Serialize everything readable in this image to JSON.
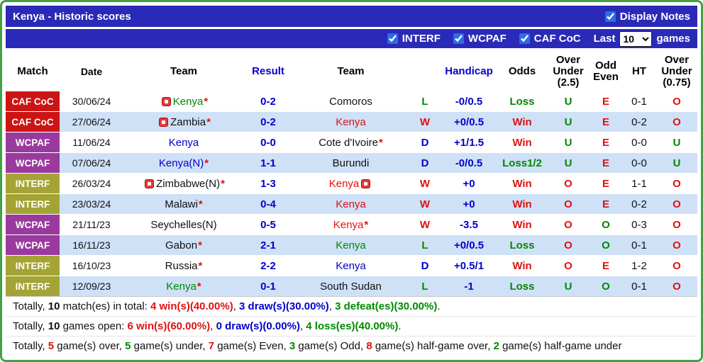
{
  "palette": {
    "header_bar_bg": "#2a2ab8",
    "outer_border_green": "#46a146",
    "row_alt_bg": "#cfe1f7",
    "red_text": "#e01111",
    "green_text": "#008800",
    "blue_text": "#0000cc",
    "cafcoc_bg": "#cc1414",
    "wcpaf_bg": "#9a3a9e",
    "interf_bg": "#a4a436",
    "checkbox_blue": "#2e6be6"
  },
  "symbols": {
    "asterisk": "*"
  },
  "title_bar": {
    "title": "Kenya - Historic scores",
    "display_notes": {
      "label": "Display Notes",
      "checked": true
    }
  },
  "filter_bar": {
    "competitions": [
      {
        "label": "INTERF",
        "checked": true
      },
      {
        "label": "WCPAF",
        "checked": true
      },
      {
        "label": "CAF CoC",
        "checked": true
      }
    ],
    "last_label": "Last",
    "games_value": "10",
    "games_label": "games"
  },
  "table": {
    "headers": [
      "Match",
      "Date",
      "Team",
      "Result",
      "Team",
      "",
      "Handicap",
      "Odds",
      "Over\nUnder\n(2.5)",
      "Odd\nEven",
      "HT",
      "Over\nUnder\n(0.75)"
    ],
    "rows": [
      {
        "type": "CAF CoC",
        "type_key": "cafcoc",
        "date": "30/06/24",
        "home": {
          "name": "Kenya",
          "color": "green",
          "asterisk": true,
          "icon_before": true
        },
        "result": "0-2",
        "away": {
          "name": "Comoros",
          "color": "black"
        },
        "outcome": {
          "text": "L",
          "color": "green"
        },
        "handicap": "-0/0.5",
        "odds": {
          "text": "Loss",
          "color": "green"
        },
        "over_under_25": {
          "text": "U",
          "color": "green"
        },
        "odd_even": {
          "text": "E",
          "color": "red"
        },
        "ht": "0-1",
        "over_under_075": {
          "text": "O",
          "color": "red"
        }
      },
      {
        "type": "CAF CoC",
        "type_key": "cafcoc",
        "date": "27/06/24",
        "home": {
          "name": "Zambia",
          "color": "black",
          "asterisk": true,
          "icon_before": true
        },
        "result": "0-2",
        "away": {
          "name": "Kenya",
          "color": "red"
        },
        "outcome": {
          "text": "W",
          "color": "red"
        },
        "handicap": "+0/0.5",
        "odds": {
          "text": "Win",
          "color": "red"
        },
        "over_under_25": {
          "text": "U",
          "color": "green"
        },
        "odd_even": {
          "text": "E",
          "color": "red"
        },
        "ht": "0-2",
        "over_under_075": {
          "text": "O",
          "color": "red"
        }
      },
      {
        "type": "WCPAF",
        "type_key": "wcpaf",
        "date": "11/06/24",
        "home": {
          "name": "Kenya",
          "color": "blue"
        },
        "result": "0-0",
        "away": {
          "name": "Cote d'Ivoire",
          "color": "black",
          "asterisk": true
        },
        "outcome": {
          "text": "D",
          "color": "blue"
        },
        "handicap": "+1/1.5",
        "odds": {
          "text": "Win",
          "color": "red"
        },
        "over_under_25": {
          "text": "U",
          "color": "green"
        },
        "odd_even": {
          "text": "E",
          "color": "red"
        },
        "ht": "0-0",
        "over_under_075": {
          "text": "U",
          "color": "green"
        }
      },
      {
        "type": "WCPAF",
        "type_key": "wcpaf",
        "date": "07/06/24",
        "home": {
          "name": "Kenya(N)",
          "color": "blue",
          "asterisk": true
        },
        "result": "1-1",
        "away": {
          "name": "Burundi",
          "color": "black"
        },
        "outcome": {
          "text": "D",
          "color": "blue"
        },
        "handicap": "-0/0.5",
        "odds": {
          "text": "Loss1/2",
          "color": "green"
        },
        "over_under_25": {
          "text": "U",
          "color": "green"
        },
        "odd_even": {
          "text": "E",
          "color": "red"
        },
        "ht": "0-0",
        "over_under_075": {
          "text": "U",
          "color": "green"
        }
      },
      {
        "type": "INTERF",
        "type_key": "interf",
        "date": "26/03/24",
        "home": {
          "name": "Zimbabwe(N)",
          "color": "black",
          "asterisk": true,
          "icon_before": true
        },
        "result": "1-3",
        "away": {
          "name": "Kenya",
          "color": "red",
          "icon_after": true
        },
        "outcome": {
          "text": "W",
          "color": "red"
        },
        "handicap": "+0",
        "odds": {
          "text": "Win",
          "color": "red"
        },
        "over_under_25": {
          "text": "O",
          "color": "red"
        },
        "odd_even": {
          "text": "E",
          "color": "red"
        },
        "ht": "1-1",
        "over_under_075": {
          "text": "O",
          "color": "red"
        }
      },
      {
        "type": "INTERF",
        "type_key": "interf",
        "date": "23/03/24",
        "home": {
          "name": "Malawi",
          "color": "black",
          "asterisk": true
        },
        "result": "0-4",
        "away": {
          "name": "Kenya",
          "color": "red"
        },
        "outcome": {
          "text": "W",
          "color": "red"
        },
        "handicap": "+0",
        "odds": {
          "text": "Win",
          "color": "red"
        },
        "over_under_25": {
          "text": "O",
          "color": "red"
        },
        "odd_even": {
          "text": "E",
          "color": "red"
        },
        "ht": "0-2",
        "over_under_075": {
          "text": "O",
          "color": "red"
        }
      },
      {
        "type": "WCPAF",
        "type_key": "wcpaf",
        "date": "21/11/23",
        "home": {
          "name": "Seychelles(N)",
          "color": "black"
        },
        "result": "0-5",
        "away": {
          "name": "Kenya",
          "color": "red",
          "asterisk": true
        },
        "outcome": {
          "text": "W",
          "color": "red"
        },
        "handicap": "-3.5",
        "odds": {
          "text": "Win",
          "color": "red"
        },
        "over_under_25": {
          "text": "O",
          "color": "red"
        },
        "odd_even": {
          "text": "O",
          "color": "green"
        },
        "ht": "0-3",
        "over_under_075": {
          "text": "O",
          "color": "red"
        }
      },
      {
        "type": "WCPAF",
        "type_key": "wcpaf",
        "date": "16/11/23",
        "home": {
          "name": "Gabon",
          "color": "black",
          "asterisk": true
        },
        "result": "2-1",
        "away": {
          "name": "Kenya",
          "color": "green"
        },
        "outcome": {
          "text": "L",
          "color": "green"
        },
        "handicap": "+0/0.5",
        "odds": {
          "text": "Loss",
          "color": "green"
        },
        "over_under_25": {
          "text": "O",
          "color": "red"
        },
        "odd_even": {
          "text": "O",
          "color": "green"
        },
        "ht": "0-1",
        "over_under_075": {
          "text": "O",
          "color": "red"
        }
      },
      {
        "type": "INTERF",
        "type_key": "interf",
        "date": "16/10/23",
        "home": {
          "name": "Russia",
          "color": "black",
          "asterisk": true
        },
        "result": "2-2",
        "away": {
          "name": "Kenya",
          "color": "blue"
        },
        "outcome": {
          "text": "D",
          "color": "blue"
        },
        "handicap": "+0.5/1",
        "odds": {
          "text": "Win",
          "color": "red"
        },
        "over_under_25": {
          "text": "O",
          "color": "red"
        },
        "odd_even": {
          "text": "E",
          "color": "red"
        },
        "ht": "1-2",
        "over_under_075": {
          "text": "O",
          "color": "red"
        }
      },
      {
        "type": "INTERF",
        "type_key": "interf",
        "date": "12/09/23",
        "home": {
          "name": "Kenya",
          "color": "green",
          "asterisk": true
        },
        "result": "0-1",
        "away": {
          "name": "South Sudan",
          "color": "black"
        },
        "outcome": {
          "text": "L",
          "color": "green"
        },
        "handicap": "-1",
        "odds": {
          "text": "Loss",
          "color": "green"
        },
        "over_under_25": {
          "text": "U",
          "color": "green"
        },
        "odd_even": {
          "text": "O",
          "color": "green"
        },
        "ht": "0-1",
        "over_under_075": {
          "text": "O",
          "color": "red"
        }
      }
    ]
  },
  "footer": {
    "lines": [
      {
        "segments": [
          {
            "text": "Totally, "
          },
          {
            "text": "10",
            "bold": true
          },
          {
            "text": " match(es) in total: "
          },
          {
            "text": "4 win(s)(40.00%)",
            "color": "red",
            "bold": true
          },
          {
            "text": ", "
          },
          {
            "text": "3 draw(s)(30.00%)",
            "color": "blue",
            "bold": true
          },
          {
            "text": ", "
          },
          {
            "text": "3 defeat(es)(30.00%)",
            "color": "green",
            "bold": true
          },
          {
            "text": "."
          }
        ]
      },
      {
        "segments": [
          {
            "text": "Totally, "
          },
          {
            "text": "10",
            "bold": true
          },
          {
            "text": " games open: "
          },
          {
            "text": "6 win(s)(60.00%)",
            "color": "red",
            "bold": true
          },
          {
            "text": ", "
          },
          {
            "text": "0 draw(s)(0.00%)",
            "color": "blue",
            "bold": true
          },
          {
            "text": ", "
          },
          {
            "text": "4 loss(es)(40.00%)",
            "color": "green",
            "bold": true
          },
          {
            "text": "."
          }
        ]
      },
      {
        "segments": [
          {
            "text": "Totally, "
          },
          {
            "text": "5",
            "color": "red",
            "bold": true
          },
          {
            "text": " game(s) over, "
          },
          {
            "text": "5",
            "color": "green",
            "bold": true
          },
          {
            "text": " game(s) under, "
          },
          {
            "text": "7",
            "color": "red",
            "bold": true
          },
          {
            "text": " game(s) Even, "
          },
          {
            "text": "3",
            "color": "green",
            "bold": true
          },
          {
            "text": " game(s) Odd, "
          },
          {
            "text": "8",
            "color": "red",
            "bold": true
          },
          {
            "text": " game(s) half-game over, "
          },
          {
            "text": "2",
            "color": "green",
            "bold": true
          },
          {
            "text": " game(s) half-game under"
          }
        ]
      }
    ]
  }
}
